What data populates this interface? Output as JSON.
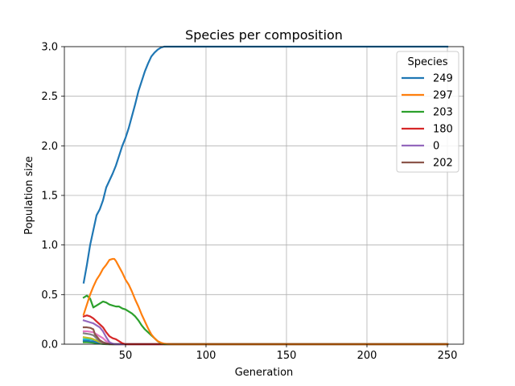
{
  "chart_data": {
    "type": "line",
    "title": "Species per composition",
    "xlabel": "Generation",
    "ylabel": "Population size",
    "xlim": [
      12,
      260
    ],
    "ylim": [
      0,
      3.0
    ],
    "xticks": [
      50,
      100,
      150,
      200,
      250
    ],
    "xtick_labels": [
      "50",
      "100",
      "150",
      "200",
      "250"
    ],
    "yticks": [
      0,
      0.5,
      1.0,
      1.5,
      2.0,
      2.5,
      3.0
    ],
    "ytick_labels": [
      "0.0",
      "0.5",
      "1.0",
      "1.5",
      "2.0",
      "2.5",
      "3.0"
    ],
    "grid": true,
    "legend": {
      "title": "Species",
      "position": "top-right",
      "entries": [
        "249",
        "297",
        "203",
        "180",
        "0",
        "202"
      ]
    },
    "series": [
      {
        "name": "249",
        "color": "#1f77b4",
        "x": [
          24,
          26,
          28,
          30,
          32,
          34,
          36,
          38,
          40,
          42,
          44,
          46,
          48,
          50,
          52,
          54,
          56,
          58,
          60,
          62,
          64,
          66,
          68,
          70,
          72,
          74,
          76,
          78,
          80,
          85,
          90,
          95,
          100,
          150,
          200,
          250
        ],
        "y": [
          0.62,
          0.8,
          1.0,
          1.15,
          1.3,
          1.36,
          1.45,
          1.58,
          1.65,
          1.72,
          1.8,
          1.9,
          2.0,
          2.08,
          2.18,
          2.3,
          2.42,
          2.55,
          2.65,
          2.75,
          2.83,
          2.9,
          2.94,
          2.97,
          2.99,
          3.0,
          3.0,
          3.0,
          3.0,
          3.0,
          3.0,
          3.0,
          3.0,
          3.0,
          3.0,
          3.0
        ]
      },
      {
        "name": "297",
        "color": "#ff7f0e",
        "x": [
          24,
          26,
          28,
          30,
          32,
          34,
          36,
          38,
          40,
          42,
          43,
          44,
          46,
          48,
          50,
          52,
          54,
          56,
          58,
          60,
          62,
          64,
          66,
          68,
          70,
          72,
          74,
          76,
          78,
          80,
          85,
          90,
          100,
          150,
          200,
          250
        ],
        "y": [
          0.3,
          0.4,
          0.5,
          0.58,
          0.65,
          0.7,
          0.76,
          0.8,
          0.85,
          0.86,
          0.86,
          0.84,
          0.78,
          0.72,
          0.65,
          0.6,
          0.53,
          0.45,
          0.38,
          0.3,
          0.23,
          0.16,
          0.1,
          0.06,
          0.03,
          0.015,
          0.005,
          0.002,
          0.001,
          0.0,
          0.0,
          0.0,
          0.0,
          0.0,
          0.0,
          0.0
        ]
      },
      {
        "name": "203",
        "color": "#2ca02c",
        "x": [
          24,
          26,
          28,
          30,
          32,
          34,
          36,
          38,
          40,
          42,
          44,
          46,
          48,
          50,
          52,
          54,
          56,
          58,
          60,
          62,
          64,
          66,
          68,
          70,
          72,
          74,
          76,
          80,
          90,
          100,
          150,
          200,
          250
        ],
        "y": [
          0.47,
          0.49,
          0.46,
          0.37,
          0.39,
          0.41,
          0.43,
          0.42,
          0.4,
          0.39,
          0.38,
          0.38,
          0.36,
          0.35,
          0.33,
          0.31,
          0.28,
          0.24,
          0.19,
          0.15,
          0.12,
          0.09,
          0.06,
          0.03,
          0.01,
          0.0,
          0.0,
          0.0,
          0.0,
          0.0,
          0.0,
          0.0,
          0.0
        ]
      },
      {
        "name": "180",
        "color": "#d62728",
        "x": [
          24,
          26,
          28,
          30,
          32,
          34,
          36,
          38,
          40,
          42,
          44,
          46,
          48,
          50,
          55,
          60,
          80,
          100,
          150,
          200,
          250
        ],
        "y": [
          0.28,
          0.29,
          0.28,
          0.26,
          0.23,
          0.2,
          0.17,
          0.12,
          0.08,
          0.06,
          0.05,
          0.03,
          0.01,
          0.0,
          0.0,
          0.0,
          0.0,
          0.0,
          0.0,
          0.0,
          0.0
        ]
      },
      {
        "name": "0",
        "color": "#9467bd",
        "x": [
          24,
          26,
          28,
          30,
          32,
          34,
          36,
          38,
          40,
          42,
          44,
          48,
          60,
          100,
          150,
          200,
          250
        ],
        "y": [
          0.24,
          0.23,
          0.22,
          0.21,
          0.19,
          0.17,
          0.13,
          0.07,
          0.02,
          0.005,
          0.0,
          0.0,
          0.0,
          0.0,
          0.0,
          0.0,
          0.0
        ]
      },
      {
        "name": "202",
        "color": "#8c564b",
        "x": [
          24,
          26,
          28,
          30,
          31,
          32,
          33,
          34,
          36,
          38,
          40,
          42,
          44,
          46,
          60,
          100,
          150,
          200,
          250
        ],
        "y": [
          0.17,
          0.17,
          0.165,
          0.15,
          0.1,
          0.08,
          0.06,
          0.04,
          0.02,
          0.008,
          0.003,
          0.0,
          0.0,
          0.0,
          0.0,
          0.0,
          0.0,
          0.0,
          0.0
        ]
      },
      {
        "name": "",
        "color": "#e377c2",
        "x": [
          24,
          26,
          28,
          30,
          32,
          34,
          36,
          38,
          40,
          44,
          60,
          250
        ],
        "y": [
          0.13,
          0.13,
          0.125,
          0.12,
          0.1,
          0.08,
          0.06,
          0.03,
          0.01,
          0.0,
          0.0,
          0.0
        ]
      },
      {
        "name": "",
        "color": "#7f7f7f",
        "x": [
          24,
          26,
          28,
          30,
          32,
          34,
          36,
          40,
          60,
          250
        ],
        "y": [
          0.11,
          0.105,
          0.1,
          0.09,
          0.06,
          0.03,
          0.01,
          0.0,
          0.0,
          0.0
        ]
      },
      {
        "name": "",
        "color": "#bcbd22",
        "x": [
          24,
          26,
          28,
          30,
          32,
          34,
          36,
          40,
          60,
          250
        ],
        "y": [
          0.07,
          0.065,
          0.06,
          0.05,
          0.035,
          0.02,
          0.005,
          0.0,
          0.0,
          0.0
        ]
      },
      {
        "name": "",
        "color": "#17becf",
        "x": [
          24,
          26,
          28,
          30,
          32,
          34,
          36,
          38,
          40,
          42,
          60,
          250
        ],
        "y": [
          0.05,
          0.05,
          0.048,
          0.045,
          0.04,
          0.03,
          0.02,
          0.01,
          0.003,
          0.0,
          0.0,
          0.0
        ]
      },
      {
        "name": "",
        "color": "#1f77b4",
        "x": [
          24,
          26,
          28,
          30,
          32,
          34,
          36,
          38,
          40,
          60,
          250
        ],
        "y": [
          0.035,
          0.035,
          0.03,
          0.028,
          0.02,
          0.012,
          0.005,
          0.001,
          0.0,
          0.0,
          0.0
        ]
      },
      {
        "name": "",
        "color": "#2ca02c",
        "x": [
          24,
          26,
          28,
          30,
          32,
          34,
          36,
          38,
          40,
          60,
          250
        ],
        "y": [
          0.02,
          0.02,
          0.018,
          0.015,
          0.01,
          0.006,
          0.002,
          0.0,
          0.0,
          0.0,
          0.0
        ]
      }
    ]
  }
}
